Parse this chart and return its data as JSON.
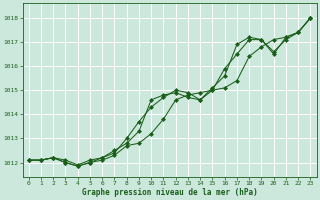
{
  "title": "Graphe pression niveau de la mer (hPa)",
  "bg_color": "#cce8dc",
  "grid_color": "#ffffff",
  "line_color": "#1a5e1a",
  "dot_color": "#1a5e1a",
  "text_color": "#1a5e1a",
  "ylim": [
    1011.4,
    1018.6
  ],
  "xlim": [
    -0.5,
    23.5
  ],
  "yticks": [
    1012,
    1013,
    1014,
    1015,
    1016,
    1017,
    1018
  ],
  "xticks": [
    0,
    1,
    2,
    3,
    4,
    5,
    6,
    7,
    8,
    9,
    10,
    11,
    12,
    13,
    14,
    15,
    16,
    17,
    18,
    19,
    20,
    21,
    22,
    23
  ],
  "series": [
    [
      1012.1,
      1012.1,
      1012.2,
      1012.1,
      1011.9,
      1012.1,
      1012.2,
      1012.5,
      1012.8,
      1013.3,
      1014.6,
      1014.8,
      1014.9,
      1014.7,
      1014.6,
      1015.1,
      1015.6,
      1016.9,
      1017.2,
      1017.1,
      1016.5,
      1017.2,
      1017.4,
      1018.0
    ],
    [
      1012.1,
      1012.1,
      1012.2,
      1012.0,
      1011.85,
      1012.0,
      1012.1,
      1012.3,
      1012.7,
      1012.8,
      1013.2,
      1013.8,
      1014.6,
      1014.8,
      1014.9,
      1015.0,
      1015.1,
      1015.4,
      1016.4,
      1016.8,
      1017.1,
      1017.2,
      1017.4,
      1018.0
    ],
    [
      1012.1,
      1012.1,
      1012.2,
      1012.0,
      1011.85,
      1012.0,
      1012.2,
      1012.4,
      1013.0,
      1013.7,
      1014.3,
      1014.7,
      1015.0,
      1014.9,
      1014.6,
      1015.0,
      1015.9,
      1016.5,
      1017.1,
      1017.1,
      1016.6,
      1017.1,
      1017.4,
      1018.0
    ]
  ]
}
